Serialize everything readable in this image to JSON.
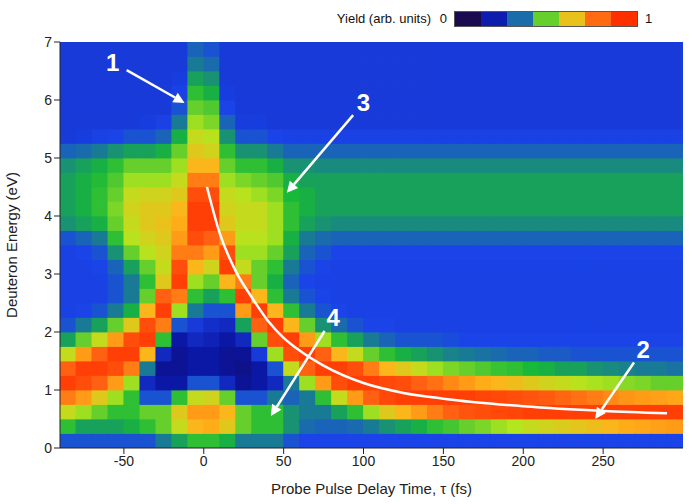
{
  "chart_data": {
    "type": "heatmap",
    "x_label": "Probe Pulse Delay Time, τ (fs)",
    "y_label": "Deuteron Energy (eV)",
    "xlim": [
      -90,
      300
    ],
    "ylim": [
      0,
      7
    ],
    "xticks": [
      -50,
      0,
      50,
      100,
      150,
      200,
      250
    ],
    "yticks": [
      0,
      1,
      2,
      3,
      4,
      5,
      6,
      7
    ],
    "x_edges": [
      -90,
      -80,
      -70,
      -60,
      -50,
      -40,
      -30,
      -20,
      -10,
      0,
      10,
      20,
      30,
      40,
      50,
      60,
      70,
      80,
      90,
      100,
      110,
      120,
      130,
      140,
      150,
      160,
      170,
      180,
      190,
      200,
      210,
      220,
      230,
      240,
      250,
      260,
      270,
      280,
      290,
      300
    ],
    "y_edges": [
      0,
      0.25,
      0.5,
      0.75,
      1,
      1.25,
      1.5,
      1.75,
      2,
      2.25,
      2.5,
      2.75,
      3,
      3.25,
      3.5,
      3.75,
      4,
      4.25,
      4.5,
      4.75,
      5,
      5.25,
      5.5,
      5.75,
      6,
      6.25,
      6.5,
      6.75,
      7
    ],
    "z": [
      [
        0.3,
        0.45,
        0.6,
        0.8,
        0.95,
        0.85,
        0.6,
        0.4,
        0.3,
        0.27,
        0.27,
        0.27,
        0.27,
        0.27,
        0.3,
        0.38,
        0.4,
        0.4,
        0.4,
        0.38,
        0.32,
        0.25,
        0.25,
        0.25,
        0.25,
        0.25,
        0.25,
        0.25
      ],
      [
        0.3,
        0.4,
        0.55,
        0.75,
        0.9,
        0.95,
        0.75,
        0.5,
        0.35,
        0.28,
        0.27,
        0.27,
        0.27,
        0.28,
        0.32,
        0.4,
        0.42,
        0.42,
        0.42,
        0.4,
        0.33,
        0.26,
        0.25,
        0.25,
        0.25,
        0.25,
        0.25,
        0.25
      ],
      [
        0.3,
        0.4,
        0.5,
        0.65,
        0.85,
        0.95,
        0.85,
        0.6,
        0.4,
        0.3,
        0.27,
        0.27,
        0.28,
        0.3,
        0.35,
        0.42,
        0.45,
        0.45,
        0.44,
        0.42,
        0.35,
        0.27,
        0.25,
        0.25,
        0.25,
        0.25,
        0.25,
        0.25
      ],
      [
        0.3,
        0.4,
        0.45,
        0.55,
        0.75,
        0.9,
        0.95,
        0.75,
        0.5,
        0.35,
        0.3,
        0.3,
        0.32,
        0.38,
        0.45,
        0.5,
        0.52,
        0.5,
        0.48,
        0.45,
        0.38,
        0.28,
        0.25,
        0.25,
        0.25,
        0.25,
        0.25,
        0.25
      ],
      [
        0.3,
        0.42,
        0.45,
        0.45,
        0.55,
        0.8,
        0.95,
        0.9,
        0.65,
        0.42,
        0.35,
        0.35,
        0.4,
        0.5,
        0.58,
        0.6,
        0.62,
        0.6,
        0.55,
        0.5,
        0.4,
        0.3,
        0.25,
        0.25,
        0.25,
        0.25,
        0.25,
        0.25
      ],
      [
        0.3,
        0.45,
        0.5,
        0.3,
        0.2,
        0.35,
        0.7,
        0.95,
        0.9,
        0.7,
        0.5,
        0.45,
        0.5,
        0.58,
        0.62,
        0.65,
        0.65,
        0.62,
        0.55,
        0.5,
        0.4,
        0.3,
        0.26,
        0.25,
        0.25,
        0.25,
        0.25,
        0.25
      ],
      [
        0.35,
        0.5,
        0.5,
        0.3,
        0.15,
        0.12,
        0.2,
        0.45,
        0.8,
        0.95,
        0.85,
        0.65,
        0.6,
        0.62,
        0.65,
        0.67,
        0.65,
        0.62,
        0.55,
        0.5,
        0.42,
        0.32,
        0.27,
        0.25,
        0.25,
        0.25,
        0.25,
        0.25
      ],
      [
        0.4,
        0.6,
        0.65,
        0.45,
        0.15,
        0.12,
        0.12,
        0.15,
        0.3,
        0.55,
        0.8,
        0.95,
        0.9,
        0.8,
        0.75,
        0.72,
        0.7,
        0.65,
        0.6,
        0.55,
        0.5,
        0.42,
        0.35,
        0.3,
        0.27,
        0.26,
        0.25,
        0.25
      ],
      [
        0.45,
        0.7,
        0.75,
        0.6,
        0.3,
        0.15,
        0.15,
        0.2,
        0.25,
        0.35,
        0.45,
        0.55,
        0.7,
        0.8,
        0.9,
        0.95,
        0.95,
        0.9,
        0.8,
        0.7,
        0.65,
        0.6,
        0.55,
        0.5,
        0.45,
        0.4,
        0.35,
        0.32
      ],
      [
        0.45,
        0.72,
        0.75,
        0.62,
        0.3,
        0.15,
        0.15,
        0.18,
        0.22,
        0.3,
        0.4,
        0.5,
        0.62,
        0.75,
        0.85,
        0.95,
        0.95,
        0.9,
        0.8,
        0.7,
        0.62,
        0.58,
        0.52,
        0.48,
        0.42,
        0.38,
        0.33,
        0.3
      ],
      [
        0.42,
        0.65,
        0.7,
        0.5,
        0.2,
        0.12,
        0.12,
        0.15,
        0.2,
        0.3,
        0.45,
        0.7,
        0.95,
        0.9,
        0.75,
        0.65,
        0.62,
        0.6,
        0.55,
        0.5,
        0.45,
        0.38,
        0.32,
        0.28,
        0.26,
        0.25,
        0.25,
        0.25
      ],
      [
        0.35,
        0.5,
        0.5,
        0.3,
        0.12,
        0.1,
        0.12,
        0.2,
        0.4,
        0.75,
        0.95,
        0.8,
        0.6,
        0.55,
        0.58,
        0.6,
        0.6,
        0.58,
        0.52,
        0.45,
        0.38,
        0.3,
        0.26,
        0.25,
        0.25,
        0.25,
        0.25,
        0.25
      ],
      [
        0.35,
        0.45,
        0.45,
        0.3,
        0.15,
        0.15,
        0.25,
        0.5,
        0.85,
        0.95,
        0.7,
        0.5,
        0.5,
        0.55,
        0.58,
        0.6,
        0.6,
        0.55,
        0.5,
        0.45,
        0.38,
        0.3,
        0.26,
        0.25,
        0.25,
        0.25,
        0.25,
        0.25
      ],
      [
        0.35,
        0.45,
        0.45,
        0.35,
        0.2,
        0.3,
        0.55,
        0.9,
        0.95,
        0.7,
        0.45,
        0.42,
        0.45,
        0.5,
        0.55,
        0.55,
        0.55,
        0.52,
        0.48,
        0.42,
        0.35,
        0.28,
        0.25,
        0.25,
        0.25,
        0.25,
        0.25,
        0.25
      ],
      [
        0.3,
        0.38,
        0.38,
        0.32,
        0.35,
        0.6,
        0.9,
        0.95,
        0.7,
        0.45,
        0.35,
        0.32,
        0.35,
        0.4,
        0.42,
        0.45,
        0.45,
        0.43,
        0.42,
        0.38,
        0.32,
        0.27,
        0.25,
        0.25,
        0.25,
        0.25,
        0.25,
        0.25
      ],
      [
        0.28,
        0.33,
        0.35,
        0.35,
        0.55,
        0.85,
        0.95,
        0.75,
        0.5,
        0.35,
        0.3,
        0.28,
        0.3,
        0.32,
        0.35,
        0.4,
        0.42,
        0.42,
        0.4,
        0.38,
        0.32,
        0.27,
        0.25,
        0.25,
        0.25,
        0.25,
        0.25,
        0.25
      ],
      [
        0.28,
        0.32,
        0.35,
        0.45,
        0.75,
        0.95,
        0.85,
        0.55,
        0.38,
        0.3,
        0.28,
        0.27,
        0.28,
        0.3,
        0.33,
        0.38,
        0.4,
        0.4,
        0.4,
        0.37,
        0.32,
        0.27,
        0.25,
        0.25,
        0.25,
        0.25,
        0.25,
        0.25
      ],
      [
        0.28,
        0.32,
        0.4,
        0.6,
        0.9,
        0.95,
        0.7,
        0.45,
        0.33,
        0.28,
        0.27,
        0.27,
        0.27,
        0.28,
        0.32,
        0.37,
        0.4,
        0.4,
        0.4,
        0.37,
        0.32,
        0.27,
        0.25,
        0.25,
        0.25,
        0.25,
        0.25,
        0.25
      ],
      [
        0.28,
        0.33,
        0.45,
        0.75,
        0.95,
        0.9,
        0.6,
        0.4,
        0.3,
        0.27,
        0.27,
        0.27,
        0.27,
        0.28,
        0.32,
        0.37,
        0.4,
        0.4,
        0.4,
        0.37,
        0.32,
        0.27,
        0.25,
        0.25,
        0.25,
        0.25,
        0.25,
        0.25
      ],
      [
        0.28,
        0.35,
        0.55,
        0.85,
        0.95,
        0.8,
        0.5,
        0.35,
        0.28,
        0.27,
        0.27,
        0.27,
        0.27,
        0.28,
        0.32,
        0.37,
        0.4,
        0.4,
        0.4,
        0.37,
        0.32,
        0.27,
        0.25,
        0.25,
        0.25,
        0.25,
        0.25,
        0.25
      ],
      [
        0.28,
        0.38,
        0.65,
        0.92,
        0.92,
        0.7,
        0.45,
        0.32,
        0.28,
        0.27,
        0.27,
        0.27,
        0.27,
        0.28,
        0.32,
        0.37,
        0.4,
        0.4,
        0.4,
        0.37,
        0.32,
        0.27,
        0.25,
        0.25,
        0.25,
        0.25,
        0.25,
        0.25
      ],
      [
        0.28,
        0.4,
        0.7,
        0.95,
        0.9,
        0.65,
        0.42,
        0.3,
        0.27,
        0.27,
        0.27,
        0.27,
        0.27,
        0.28,
        0.32,
        0.37,
        0.4,
        0.4,
        0.4,
        0.37,
        0.32,
        0.27,
        0.25,
        0.25,
        0.25,
        0.25,
        0.25,
        0.25
      ],
      [
        0.28,
        0.42,
        0.75,
        0.95,
        0.85,
        0.6,
        0.4,
        0.3,
        0.27,
        0.27,
        0.27,
        0.27,
        0.27,
        0.28,
        0.32,
        0.37,
        0.4,
        0.4,
        0.4,
        0.37,
        0.32,
        0.27,
        0.25,
        0.25,
        0.25,
        0.25,
        0.25,
        0.25
      ],
      [
        0.28,
        0.45,
        0.8,
        0.95,
        0.82,
        0.55,
        0.38,
        0.3,
        0.27,
        0.27,
        0.27,
        0.27,
        0.27,
        0.28,
        0.32,
        0.37,
        0.4,
        0.4,
        0.4,
        0.37,
        0.32,
        0.27,
        0.25,
        0.25,
        0.25,
        0.25,
        0.25,
        0.25
      ],
      [
        0.28,
        0.47,
        0.85,
        0.95,
        0.78,
        0.52,
        0.36,
        0.29,
        0.27,
        0.27,
        0.27,
        0.27,
        0.27,
        0.28,
        0.32,
        0.37,
        0.4,
        0.4,
        0.4,
        0.37,
        0.32,
        0.27,
        0.25,
        0.25,
        0.25,
        0.25,
        0.25,
        0.25
      ],
      [
        0.28,
        0.5,
        0.88,
        0.95,
        0.75,
        0.5,
        0.35,
        0.28,
        0.27,
        0.27,
        0.27,
        0.27,
        0.27,
        0.28,
        0.32,
        0.37,
        0.4,
        0.4,
        0.4,
        0.37,
        0.32,
        0.27,
        0.25,
        0.25,
        0.25,
        0.25,
        0.25,
        0.25
      ],
      [
        0.28,
        0.52,
        0.9,
        0.93,
        0.72,
        0.48,
        0.34,
        0.28,
        0.27,
        0.27,
        0.27,
        0.27,
        0.27,
        0.28,
        0.32,
        0.37,
        0.4,
        0.4,
        0.4,
        0.37,
        0.32,
        0.27,
        0.25,
        0.25,
        0.25,
        0.25,
        0.25,
        0.25
      ],
      [
        0.28,
        0.55,
        0.92,
        0.92,
        0.7,
        0.46,
        0.33,
        0.28,
        0.27,
        0.27,
        0.27,
        0.27,
        0.27,
        0.28,
        0.32,
        0.37,
        0.4,
        0.4,
        0.4,
        0.37,
        0.32,
        0.27,
        0.25,
        0.25,
        0.25,
        0.25,
        0.25,
        0.25
      ],
      [
        0.28,
        0.57,
        0.93,
        0.9,
        0.68,
        0.45,
        0.32,
        0.28,
        0.27,
        0.27,
        0.27,
        0.27,
        0.27,
        0.28,
        0.32,
        0.37,
        0.4,
        0.4,
        0.4,
        0.37,
        0.32,
        0.27,
        0.25,
        0.25,
        0.25,
        0.25,
        0.25,
        0.25
      ],
      [
        0.28,
        0.6,
        0.95,
        0.88,
        0.65,
        0.43,
        0.32,
        0.28,
        0.27,
        0.27,
        0.27,
        0.27,
        0.27,
        0.28,
        0.32,
        0.37,
        0.4,
        0.4,
        0.4,
        0.37,
        0.32,
        0.27,
        0.25,
        0.25,
        0.25,
        0.25,
        0.25,
        0.25
      ],
      [
        0.28,
        0.62,
        0.95,
        0.86,
        0.62,
        0.42,
        0.31,
        0.28,
        0.27,
        0.27,
        0.27,
        0.27,
        0.27,
        0.28,
        0.32,
        0.37,
        0.4,
        0.4,
        0.4,
        0.37,
        0.32,
        0.27,
        0.25,
        0.25,
        0.25,
        0.25,
        0.25,
        0.25
      ],
      [
        0.28,
        0.64,
        0.95,
        0.84,
        0.6,
        0.4,
        0.31,
        0.28,
        0.27,
        0.27,
        0.27,
        0.27,
        0.27,
        0.28,
        0.32,
        0.37,
        0.4,
        0.4,
        0.4,
        0.37,
        0.32,
        0.27,
        0.25,
        0.25,
        0.25,
        0.25,
        0.25,
        0.25
      ],
      [
        0.28,
        0.66,
        0.95,
        0.82,
        0.58,
        0.4,
        0.3,
        0.28,
        0.27,
        0.27,
        0.27,
        0.27,
        0.27,
        0.28,
        0.32,
        0.37,
        0.4,
        0.4,
        0.4,
        0.37,
        0.32,
        0.27,
        0.25,
        0.25,
        0.25,
        0.25,
        0.25,
        0.25
      ],
      [
        0.28,
        0.68,
        0.95,
        0.8,
        0.56,
        0.38,
        0.3,
        0.28,
        0.27,
        0.27,
        0.27,
        0.27,
        0.27,
        0.28,
        0.32,
        0.37,
        0.4,
        0.4,
        0.4,
        0.37,
        0.32,
        0.27,
        0.25,
        0.25,
        0.25,
        0.25,
        0.25,
        0.25
      ],
      [
        0.28,
        0.7,
        0.95,
        0.78,
        0.55,
        0.37,
        0.3,
        0.28,
        0.27,
        0.27,
        0.27,
        0.27,
        0.27,
        0.28,
        0.32,
        0.37,
        0.4,
        0.4,
        0.4,
        0.37,
        0.32,
        0.27,
        0.25,
        0.25,
        0.25,
        0.25,
        0.25,
        0.25
      ],
      [
        0.28,
        0.72,
        0.95,
        0.76,
        0.53,
        0.36,
        0.3,
        0.28,
        0.27,
        0.27,
        0.27,
        0.27,
        0.27,
        0.28,
        0.32,
        0.37,
        0.4,
        0.4,
        0.4,
        0.37,
        0.32,
        0.27,
        0.25,
        0.25,
        0.25,
        0.25,
        0.25,
        0.25
      ],
      [
        0.28,
        0.73,
        0.95,
        0.75,
        0.52,
        0.35,
        0.3,
        0.28,
        0.27,
        0.27,
        0.27,
        0.27,
        0.27,
        0.28,
        0.32,
        0.37,
        0.4,
        0.4,
        0.4,
        0.37,
        0.32,
        0.27,
        0.25,
        0.25,
        0.25,
        0.25,
        0.25,
        0.25
      ],
      [
        0.28,
        0.74,
        0.95,
        0.74,
        0.5,
        0.35,
        0.3,
        0.28,
        0.27,
        0.27,
        0.27,
        0.27,
        0.27,
        0.28,
        0.32,
        0.37,
        0.4,
        0.4,
        0.4,
        0.37,
        0.32,
        0.27,
        0.25,
        0.25,
        0.25,
        0.25,
        0.25,
        0.25
      ],
      [
        0.28,
        0.75,
        0.95,
        0.73,
        0.5,
        0.34,
        0.3,
        0.28,
        0.27,
        0.27,
        0.27,
        0.27,
        0.27,
        0.28,
        0.32,
        0.37,
        0.4,
        0.4,
        0.4,
        0.37,
        0.32,
        0.27,
        0.25,
        0.25,
        0.25,
        0.25,
        0.25,
        0.25
      ]
    ],
    "colorbar": {
      "label": "Yield (arb. units)",
      "range": [
        0,
        1
      ],
      "ticks": [
        0,
        1
      ]
    },
    "curve": {
      "x": [
        2,
        10,
        20,
        30,
        40,
        50,
        60,
        75,
        100,
        125,
        150,
        200,
        250,
        290
      ],
      "y": [
        4.5,
        3.7,
        3.05,
        2.6,
        2.2,
        1.9,
        1.68,
        1.42,
        1.12,
        0.95,
        0.85,
        0.72,
        0.64,
        0.6
      ],
      "color": "#ffffff"
    },
    "annotations": [
      {
        "text": "1",
        "x": -12,
        "y": 5.95,
        "text_x": -57,
        "text_y": 6.65
      },
      {
        "text": "3",
        "x": 52,
        "y": 4.4,
        "text_x": 100,
        "text_y": 5.95
      },
      {
        "text": "4",
        "x": 42,
        "y": 0.55,
        "text_x": 81,
        "text_y": 2.25
      },
      {
        "text": "2",
        "x": 245,
        "y": 0.5,
        "text_x": 275,
        "text_y": 1.7
      }
    ]
  }
}
